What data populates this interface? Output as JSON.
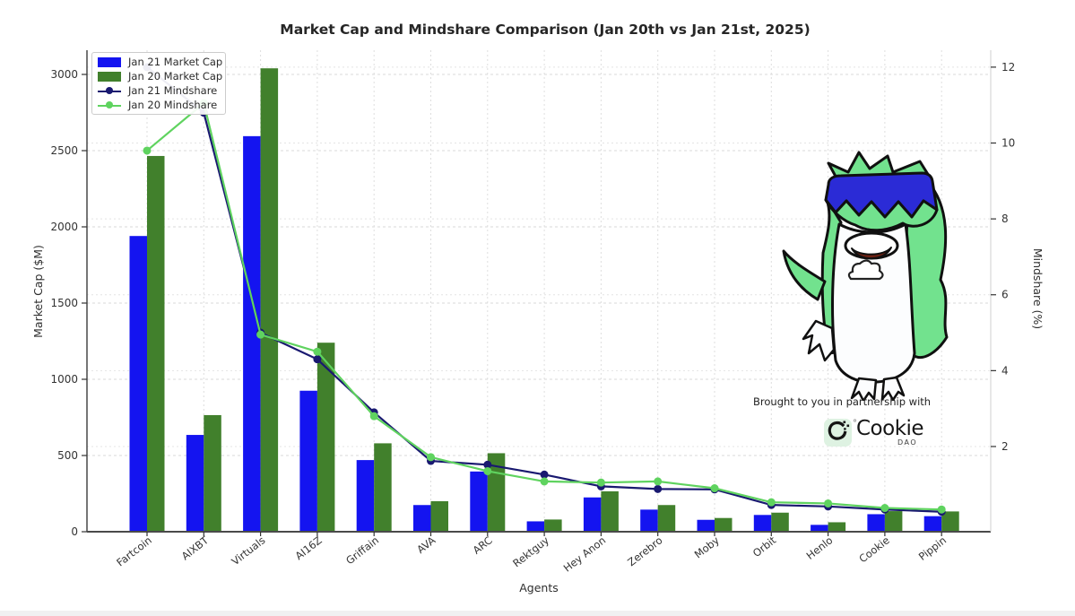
{
  "title": "Market Cap and Mindshare Comparison (Jan 20th vs Jan 21st, 2025)",
  "axes": {
    "x_label": "Agents",
    "y_left_label": "Market Cap ($M)",
    "y_right_label": "Mindshare (%)",
    "y_left_ticks": [
      0,
      500,
      1000,
      1500,
      2000,
      2500,
      3000
    ],
    "y_right_ticks": [
      2,
      4,
      6,
      8,
      10,
      12
    ]
  },
  "legend": [
    {
      "label": "Jan 21 Market Cap",
      "type": "patch",
      "color": "#1414f0"
    },
    {
      "label": "Jan 20 Market Cap",
      "type": "patch",
      "color": "#41802c"
    },
    {
      "label": "Jan 21 Mindshare",
      "type": "line",
      "color": "#191970"
    },
    {
      "label": "Jan 20 Mindshare",
      "type": "line",
      "color": "#5fd35f"
    }
  ],
  "chart_data": {
    "type": "combo-bar-line",
    "categories": [
      "Fartcoin",
      "AIXBT",
      "Virtuals",
      "AI16Z",
      "Griffain",
      "AVA",
      "ARC",
      "Rektguy",
      "Hey Anon",
      "Zerebro",
      "Moby",
      "Orbit",
      "Henlo",
      "Cookie",
      "Pippin"
    ],
    "series": [
      {
        "name": "Jan 21 Market Cap",
        "kind": "bar",
        "axis": "left",
        "color": "#1414f0",
        "values": [
          1940,
          635,
          2595,
          925,
          470,
          175,
          395,
          68,
          225,
          145,
          78,
          110,
          45,
          115,
          102
        ]
      },
      {
        "name": "Jan 20 Market Cap",
        "kind": "bar",
        "axis": "left",
        "color": "#41802c",
        "values": [
          2465,
          765,
          3040,
          1240,
          580,
          200,
          515,
          80,
          265,
          175,
          90,
          125,
          62,
          135,
          133
        ]
      },
      {
        "name": "Jan 21 Mindshare",
        "kind": "line",
        "axis": "right",
        "color": "#191970",
        "values": [
          12.0,
          10.8,
          5.0,
          4.3,
          2.9,
          1.62,
          1.52,
          1.26,
          0.95,
          0.88,
          0.87,
          0.46,
          0.42,
          0.34,
          0.28
        ]
      },
      {
        "name": "Jan 20 Mindshare",
        "kind": "line",
        "axis": "right",
        "color": "#5fd35f",
        "values": [
          9.8,
          11.05,
          4.95,
          4.5,
          2.8,
          1.72,
          1.35,
          1.08,
          1.05,
          1.08,
          0.9,
          0.53,
          0.5,
          0.38,
          0.34
        ]
      }
    ],
    "title": "Market Cap and Mindshare Comparison (Jan 20th vs Jan 21st, 2025)",
    "xlabel": "Agents",
    "ylabel_left": "Market Cap ($M)",
    "ylabel_right": "Mindshare (%)",
    "ylim_left": [
      0,
      3160
    ],
    "ylim_right": [
      0,
      12.7
    ],
    "grid": true,
    "x_tick_rotation": 40,
    "legend_position": "upper-left"
  },
  "partnership": {
    "caption": "Brought to you in partnership with",
    "brand": "Cookie",
    "brand_sub": "DAO"
  },
  "colors": {
    "bar_jan21": "#1414f0",
    "bar_jan20": "#41802c",
    "line_jan21": "#191970",
    "line_jan20": "#5fd35f",
    "grid": "#d9d9d9",
    "text": "#2e2e2e"
  },
  "mascot": {
    "name": "penguin-mascot",
    "description": "green-haired penguin cartoon with blue headband"
  }
}
